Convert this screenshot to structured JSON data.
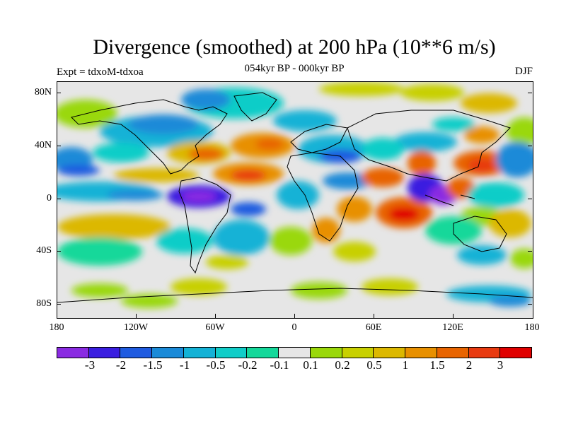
{
  "title": "Divergence (smoothed) at 200 hPa (10**6 m/s)",
  "subtitle": "054kyr BP - 000kyr BP",
  "experiment": "Expt = tdxoM-tdxoa",
  "season": "DJF",
  "map": {
    "projection": "cylindrical-equidistant",
    "lon_range": [
      -180,
      180
    ],
    "lat_range": [
      -90,
      90
    ],
    "lat_labels": [
      "80N",
      "40N",
      "0",
      "40S",
      "80S"
    ],
    "lon_labels": [
      "180",
      "120W",
      "60W",
      "0",
      "60E",
      "120E",
      "180"
    ],
    "background_color": "#e6e6e6"
  },
  "legend": {
    "colors": [
      "#8a2be2",
      "#3a1ee0",
      "#1f5be0",
      "#1a8ad8",
      "#14b2d6",
      "#10cdc8",
      "#14d89a",
      "#e6e6e6",
      "#9ad80a",
      "#c8d000",
      "#dcb800",
      "#e89000",
      "#e86400",
      "#e83a10",
      "#e00000"
    ],
    "labels": [
      "-3",
      "-2",
      "-1.5",
      "-1",
      "-0.5",
      "-0.2",
      "-0.1",
      "0.1",
      "0.2",
      "0.5",
      "1",
      "1.5",
      "2",
      "3"
    ]
  }
}
